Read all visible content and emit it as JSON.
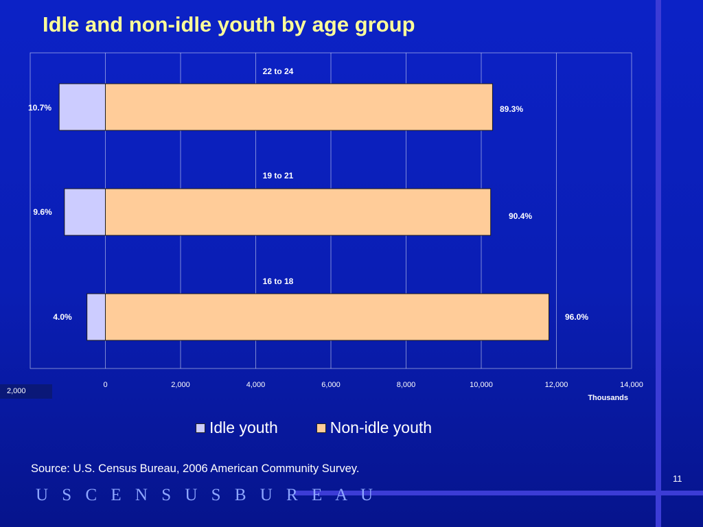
{
  "slide": {
    "title": "Idle and non-idle youth by age group",
    "source": "Source: U.S. Census Bureau, 2006 American Community Survey.",
    "page_number": "11",
    "brand": "U S C E N S U S B U R E A U"
  },
  "colors": {
    "background": "#0c22c6",
    "title": "#ffff99",
    "idle": "#ccccff",
    "non_idle": "#ffcc99",
    "grid": "#ffffff"
  },
  "legend": [
    {
      "label": "Idle youth",
      "color": "#ccccff"
    },
    {
      "label": "Non-idle youth",
      "color": "#ffcc99"
    }
  ],
  "chart_data": {
    "type": "bar",
    "orientation": "horizontal",
    "stacked": true,
    "categories": [
      "22 to 24",
      "19 to 21",
      "16 to 18"
    ],
    "series": [
      {
        "name": "Idle youth",
        "values": [
          -1230,
          -1090,
          -490
        ],
        "labels": [
          "10.7%",
          "9.6%",
          "4.0%"
        ]
      },
      {
        "name": "Non-idle youth",
        "values": [
          10300,
          10250,
          11800
        ],
        "labels": [
          "89.3%",
          "90.4%",
          "96.0%"
        ]
      }
    ],
    "xlim": [
      -2000,
      14000
    ],
    "xticks": [
      -2000,
      0,
      2000,
      4000,
      6000,
      8000,
      10000,
      12000,
      14000
    ],
    "xtick_labels": [
      "2,000",
      "0",
      "2,000",
      "4,000",
      "6,000",
      "8,000",
      "10,000",
      "12,000",
      "14,000"
    ],
    "xlabel": "Thousands",
    "grid": true,
    "legend_position": "bottom"
  }
}
